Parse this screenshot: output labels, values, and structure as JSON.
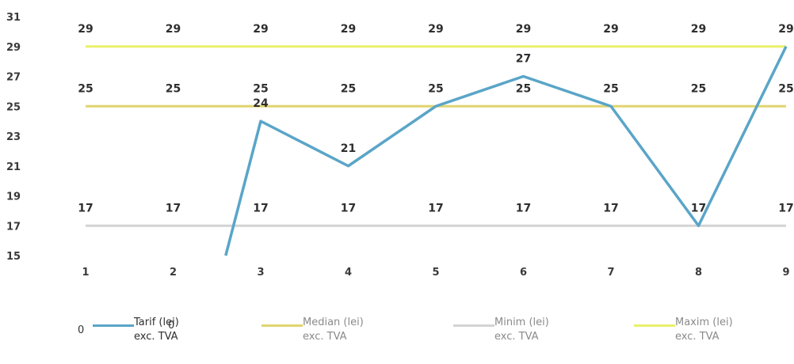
{
  "chart_data": {
    "type": "line",
    "x": [
      "1",
      "2",
      "3",
      "4",
      "5",
      "6",
      "7",
      "8",
      "9"
    ],
    "ylim": [
      15,
      31
    ],
    "yticks": [
      "15",
      "17",
      "19",
      "21",
      "23",
      "25",
      "27",
      "29",
      "31"
    ],
    "grid": false,
    "legend_position": "bottom",
    "series": [
      {
        "name": "Tarif (lei) exc. TVA",
        "color": "#5aa5c8",
        "x": [
          2.6,
          3,
          4,
          5,
          6,
          7,
          8,
          9
        ],
        "y": [
          15,
          24,
          21,
          25,
          27,
          25,
          17,
          29
        ],
        "labels": {
          "3": "24",
          "4": "21",
          "6": "27"
        }
      },
      {
        "name": "Median (lei) exc. TVA",
        "color": "#e0d56e",
        "values": [
          25,
          25,
          25,
          25,
          25,
          25,
          25,
          25,
          25
        ],
        "label_texts": [
          "25",
          "25",
          "25",
          "25",
          "25",
          "25",
          "25",
          "25",
          "25"
        ]
      },
      {
        "name": "Minim (lei) exc. TVA",
        "color": "#d3d3d3",
        "values": [
          17,
          17,
          17,
          17,
          17,
          17,
          17,
          17,
          17
        ],
        "label_texts": [
          "17",
          "17",
          "17",
          "17",
          "17",
          "17",
          "17",
          "17",
          "17"
        ]
      },
      {
        "name": "Maxim (lei) exc. TVA",
        "color": "#e9f06a",
        "values": [
          29,
          29,
          29,
          29,
          29,
          29,
          29,
          29,
          29
        ],
        "label_texts": [
          "29",
          "29",
          "29",
          "29",
          "29",
          "29",
          "29",
          "29",
          "29"
        ]
      }
    ]
  },
  "legend": {
    "items": [
      {
        "label": "Tarif (lei)",
        "sub": "exc. TVA",
        "color": "#5aa5c8",
        "text_color": "#2f2f2f"
      },
      {
        "label": "Median (lei)",
        "sub": "exc. TVA",
        "color": "#e0d56e",
        "text_color": "#8a8a8a"
      },
      {
        "label": "Minim (lei)",
        "sub": "exc. TVA",
        "color": "#d3d3d3",
        "text_color": "#8a8a8a"
      },
      {
        "label": "Maxim (lei)",
        "sub": "exc. TVA",
        "color": "#e9f06a",
        "text_color": "#8a8a8a"
      }
    ]
  },
  "stray_labels": [
    "0",
    "0"
  ]
}
